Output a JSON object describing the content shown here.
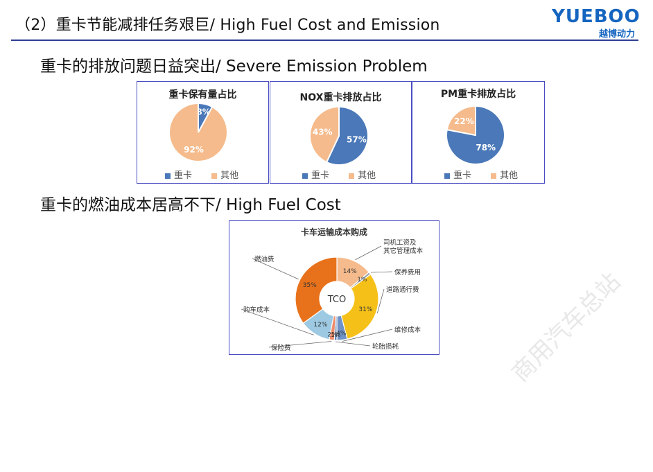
{
  "header": {
    "title": "（2）重卡节能减排任务艰巨/ High Fuel Cost and Emission",
    "logo_en": "YUEBOO",
    "logo_cn": "越博动力"
  },
  "sections": {
    "emission": "重卡的排放问题日益突出/ Severe Emission Problem",
    "fuel": "重卡的燃油成本居高不下/ High Fuel Cost"
  },
  "colors": {
    "blue": "#4a78b8",
    "peach": "#f5bb8c",
    "orange": "#e8721b",
    "yellow": "#f5c018",
    "lightblue": "#9dc9e2",
    "rule": "#2d3e92"
  },
  "chart_data": [
    {
      "type": "pie",
      "title": "重卡保有量占比",
      "categories": [
        "重卡",
        "其他"
      ],
      "values": [
        8,
        92
      ],
      "labels": [
        "8%",
        "92%"
      ],
      "legend": "bottom"
    },
    {
      "type": "pie",
      "title": "NOX重卡排放占比",
      "categories": [
        "重卡",
        "其他"
      ],
      "values": [
        57,
        43
      ],
      "labels": [
        "57%",
        "43%"
      ],
      "legend": "bottom"
    },
    {
      "type": "pie",
      "title": "PM重卡排放占比",
      "categories": [
        "重卡",
        "其他"
      ],
      "values": [
        78,
        22
      ],
      "labels": [
        "78%",
        "22%"
      ],
      "legend": "bottom"
    },
    {
      "type": "pie",
      "title": "卡车运输成本购成",
      "center_label": "TCO",
      "categories": [
        "司机工资及其它管理成本",
        "保养费用",
        "道路通行费",
        "维修成本",
        "轮胎损耗",
        "保险费",
        "购车成本",
        "燃油费"
      ],
      "values": [
        14,
        1,
        31,
        4,
        1,
        2,
        12,
        35
      ],
      "labels": [
        "14%",
        "1%",
        "31%",
        "4%",
        "1%",
        "2%",
        "12%",
        "35%"
      ]
    }
  ],
  "watermark": "商用汽车总站"
}
